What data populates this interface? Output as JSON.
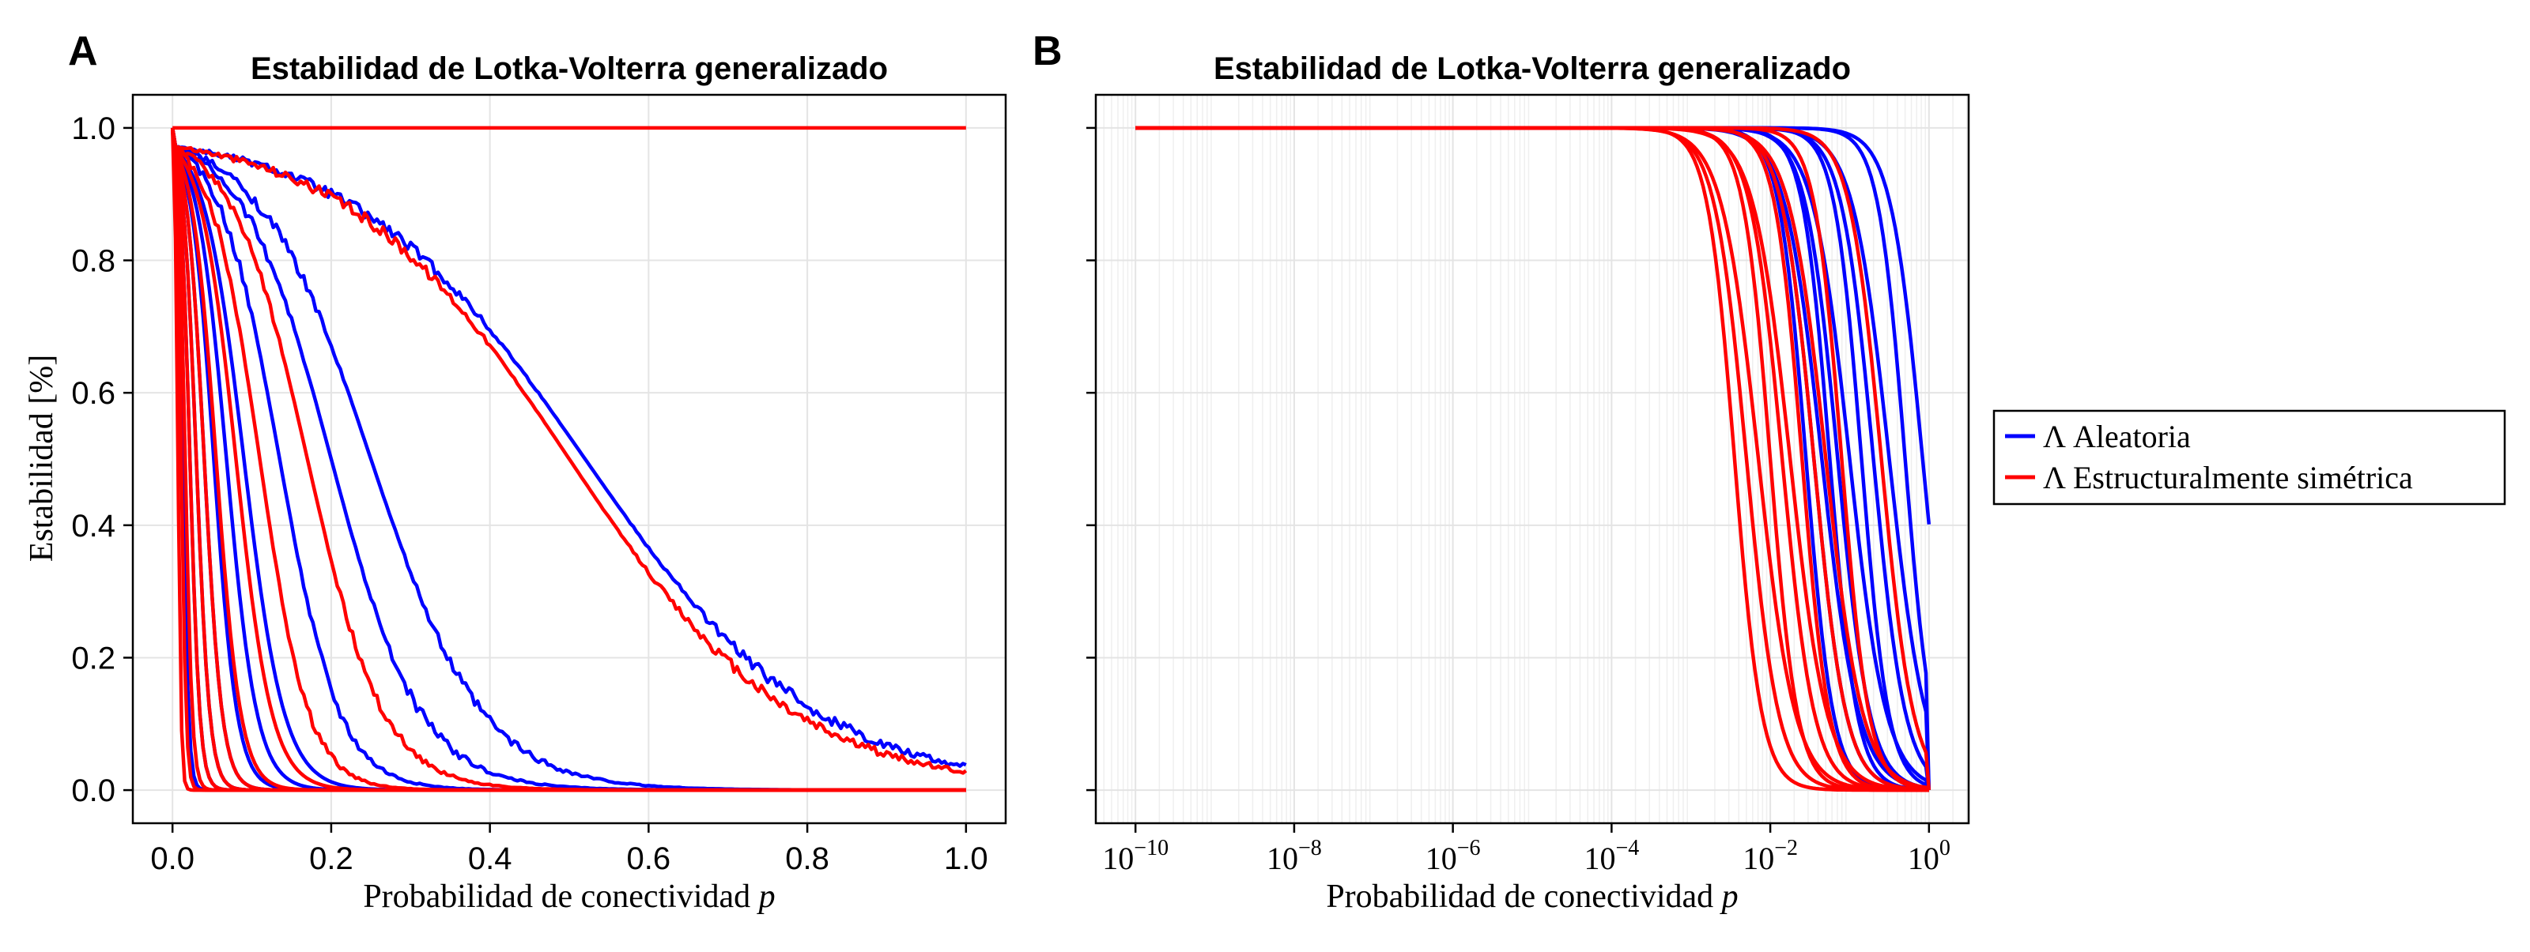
{
  "chart_data": [
    {
      "panel": "A",
      "type": "line",
      "title": "Estabilidad de Lotka-Volterra generalizado",
      "xlabel": "Probabilidad de conectividad",
      "xlabel_var": "p",
      "ylabel": "Estabilidad [%]",
      "xscale": "linear",
      "xlim": [
        -0.05,
        1.05
      ],
      "ylim": [
        -0.05,
        1.05
      ],
      "xticks": [
        "0.0",
        "0.2",
        "0.4",
        "0.6",
        "0.8",
        "1.0"
      ],
      "xtick_values": [
        0.0,
        0.2,
        0.4,
        0.6,
        0.8,
        1.0
      ],
      "yticks": [
        "0.0",
        "0.2",
        "0.4",
        "0.6",
        "0.8",
        "1.0"
      ],
      "ytick_values": [
        0.0,
        0.2,
        0.4,
        0.6,
        0.8,
        1.0
      ],
      "grid": true,
      "series": [
        {
          "group": "Λ Aleatoria",
          "color": "#0000ff",
          "midpoints": [
            0.013,
            0.022,
            0.03,
            0.04,
            0.052,
            0.068,
            0.09,
            0.135,
            0.2,
            0.25,
            0.52
          ]
        },
        {
          "group": "Λ Estructuralmente simétrica",
          "color": "#ff0000",
          "midpoints": [
            0.007,
            0.011,
            0.016,
            0.022,
            0.03,
            0.04,
            0.055,
            0.08,
            0.11,
            0.17,
            0.5
          ]
        }
      ],
      "flat_series": {
        "group": "Λ Estructuralmente simétrica",
        "color": "#ff0000",
        "value": 1.0
      }
    },
    {
      "panel": "B",
      "type": "line",
      "title": "Estabilidad de Lotka-Volterra generalizado",
      "xlabel": "Probabilidad de conectividad",
      "xlabel_var": "p",
      "xscale": "log",
      "xlim_log10": [
        -10.5,
        0.5
      ],
      "ylim": [
        -0.05,
        1.05
      ],
      "xticks_exponents": [
        "−10",
        "−8",
        "−6",
        "−4",
        "−2",
        "0"
      ],
      "xtick_values_log10": [
        -10,
        -8,
        -6,
        -4,
        -2,
        0
      ],
      "yticks": [
        "0.0",
        "0.2",
        "0.4",
        "0.6",
        "0.8",
        "1.0"
      ],
      "ytick_values": [
        0.0,
        0.2,
        0.4,
        0.6,
        0.8,
        1.0
      ],
      "ytick_labels_shown": false,
      "grid": true,
      "series": [
        {
          "group": "Λ Aleatoria",
          "color": "#0000ff",
          "midpoints_log10": [
            -1.55,
            -1.45,
            -1.35,
            -1.25,
            -1.15,
            -1.0,
            -0.85,
            -0.7,
            -0.5,
            -0.3,
            -0.08
          ]
        },
        {
          "group": "Λ Estructuralmente simétrica",
          "color": "#ff0000",
          "midpoints_log10": [
            -2.45,
            -2.3,
            -2.15,
            -2.0,
            -1.85,
            -1.75,
            -1.6,
            -1.45,
            -1.3,
            -1.1,
            -0.6
          ]
        }
      ]
    }
  ],
  "legend": {
    "placement": "right",
    "entries": [
      {
        "symbol": "Λ",
        "label": "Aleatoria",
        "color": "#0000ff"
      },
      {
        "symbol": "Λ",
        "label": "Estructuralmente simétrica",
        "color": "#ff0000"
      }
    ]
  }
}
